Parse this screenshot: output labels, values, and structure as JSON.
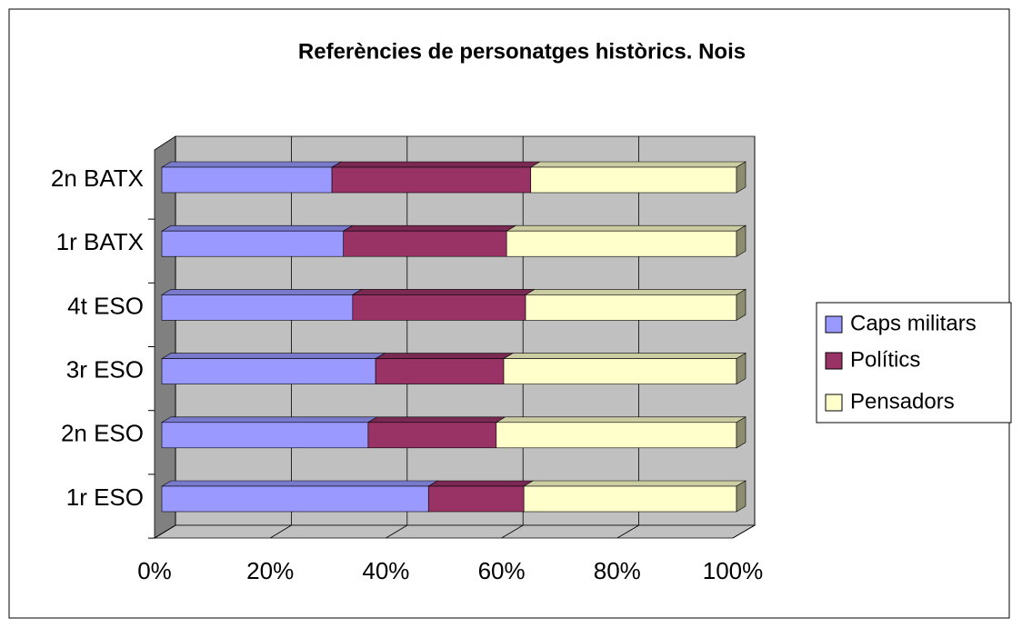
{
  "chart_data": {
    "type": "bar",
    "orientation": "horizontal",
    "stacked": true,
    "title": "Referències de personatges històrics. Nois",
    "categories": [
      "1r ESO",
      "2n ESO",
      "3r ESO",
      "4t ESO",
      "1r BATX",
      "2n BATX"
    ],
    "series": [
      {
        "name": "Caps militars",
        "color": "#9999ff",
        "values": [
          46.4,
          35.9,
          37.2,
          33.2,
          31.6,
          29.6
        ]
      },
      {
        "name": "Polítics",
        "color": "#993366",
        "values": [
          16.6,
          22.3,
          22.3,
          30.1,
          28.4,
          34.6
        ]
      },
      {
        "name": "Pensadors",
        "color": "#ffffcc",
        "values": [
          37.0,
          41.8,
          40.5,
          36.7,
          40.0,
          35.8
        ]
      }
    ],
    "xlim": [
      0,
      100
    ],
    "xticks": [
      {
        "value": 0,
        "label": "0%"
      },
      {
        "value": 20,
        "label": "20%"
      },
      {
        "value": 40,
        "label": "40%"
      },
      {
        "value": 60,
        "label": "60%"
      },
      {
        "value": 80,
        "label": "80%"
      },
      {
        "value": 100,
        "label": "100%"
      }
    ],
    "grid": true,
    "legend": "right"
  }
}
